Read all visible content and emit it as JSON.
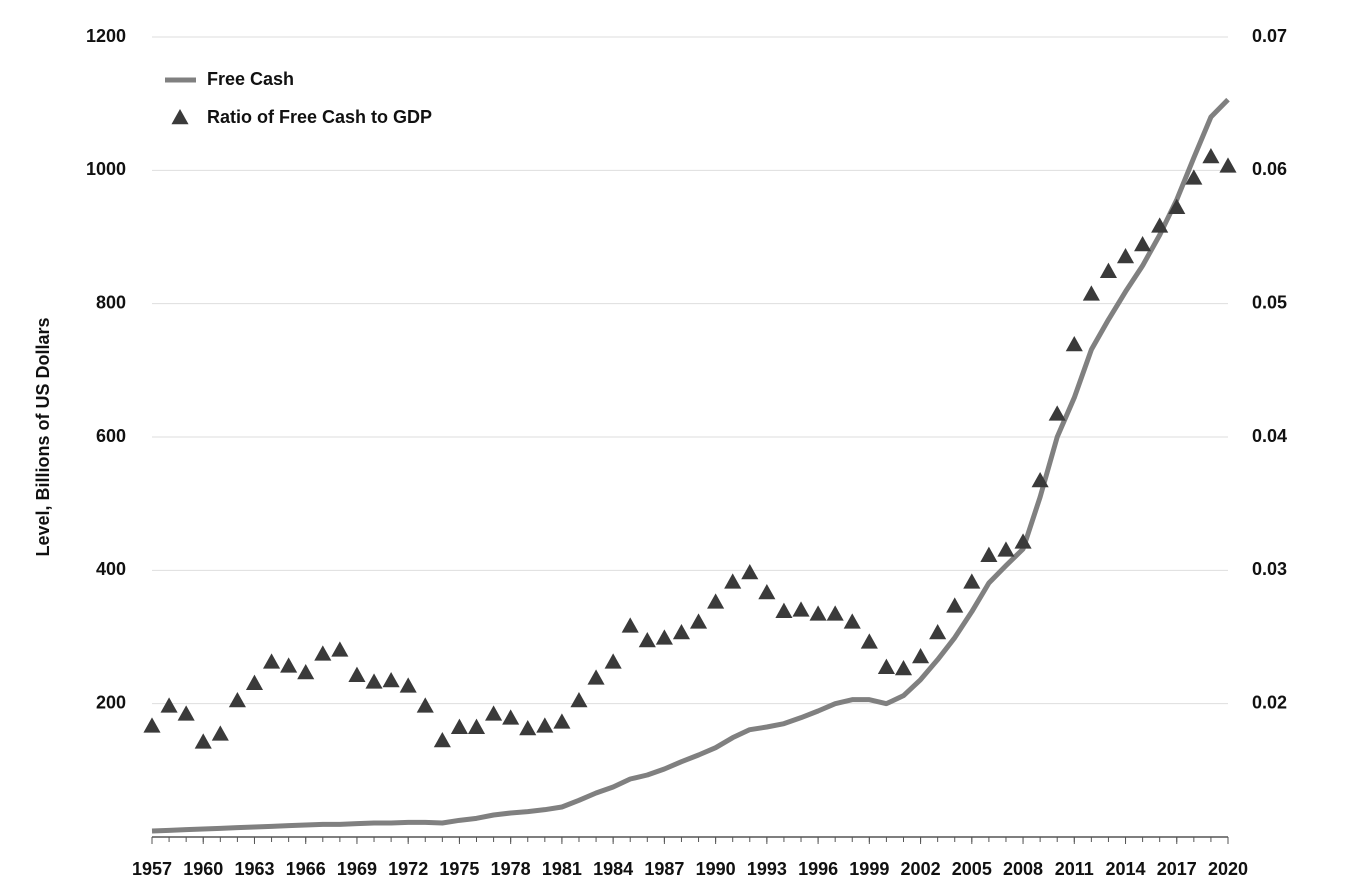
{
  "chart_data": {
    "type": "line",
    "y_label": "Level, Billions of US Dollars",
    "x": [
      1957,
      1958,
      1959,
      1960,
      1961,
      1962,
      1963,
      1964,
      1965,
      1966,
      1967,
      1968,
      1969,
      1970,
      1971,
      1972,
      1973,
      1974,
      1975,
      1976,
      1977,
      1978,
      1979,
      1980,
      1981,
      1982,
      1983,
      1984,
      1985,
      1986,
      1987,
      1988,
      1989,
      1990,
      1991,
      1992,
      1993,
      1994,
      1995,
      1996,
      1997,
      1998,
      1999,
      2000,
      2001,
      2002,
      2003,
      2004,
      2005,
      2006,
      2007,
      2008,
      2009,
      2010,
      2011,
      2012,
      2013,
      2014,
      2015,
      2016,
      2017,
      2018,
      2019,
      2020
    ],
    "series": [
      {
        "name": "Free Cash",
        "type": "line",
        "color": "#808080",
        "axis": "y",
        "values": [
          9,
          10,
          11,
          12,
          13,
          14,
          15,
          16,
          17,
          18,
          19,
          19,
          20,
          21,
          21,
          22,
          22,
          21,
          25,
          28,
          33,
          36,
          38,
          41,
          45,
          55,
          66,
          75,
          87,
          93,
          102,
          113,
          123,
          134,
          149,
          161,
          165,
          170,
          179,
          189,
          200,
          206,
          206,
          200,
          212,
          236,
          266,
          299,
          338,
          381,
          407,
          432,
          510,
          600,
          659,
          731,
          776,
          818,
          857,
          903,
          956,
          1019,
          1080,
          1106
        ]
      },
      {
        "name": "Ratio of Free Cash to GDP",
        "type": "scatter",
        "marker": "triangle",
        "color": "#3a3a3a",
        "axis": "y2",
        "values": [
          0.0183,
          0.0198,
          0.0192,
          0.0171,
          0.0177,
          0.0202,
          0.0215,
          0.0231,
          0.0228,
          0.0223,
          0.0237,
          0.024,
          0.0221,
          0.0216,
          0.0217,
          0.0213,
          0.0198,
          0.0172,
          0.0182,
          0.0182,
          0.0192,
          0.0189,
          0.0181,
          0.0183,
          0.0186,
          0.0202,
          0.0219,
          0.0231,
          0.0258,
          0.0247,
          0.0249,
          0.0253,
          0.0261,
          0.0276,
          0.0291,
          0.0298,
          0.0283,
          0.0269,
          0.027,
          0.0267,
          0.0267,
          0.0261,
          0.0246,
          0.0227,
          0.0226,
          0.0235,
          0.0253,
          0.0273,
          0.0291,
          0.0311,
          0.0315,
          0.0321,
          0.0367,
          0.0417,
          0.0469,
          0.0507,
          0.0524,
          0.0535,
          0.0544,
          0.0558,
          0.0572,
          0.0594,
          0.061,
          0.0603
        ]
      }
    ],
    "xlim": [
      1957,
      2020
    ],
    "xticks": [
      1957,
      1960,
      1963,
      1966,
      1969,
      1972,
      1975,
      1978,
      1981,
      1984,
      1987,
      1990,
      1993,
      1996,
      1999,
      2002,
      2005,
      2008,
      2011,
      2014,
      2017,
      2020
    ],
    "ylim": [
      0,
      1200
    ],
    "yticks": [
      200,
      400,
      600,
      800,
      1000,
      1200
    ],
    "y2lim": [
      0.01,
      0.07
    ],
    "y2ticks": [
      0.02,
      0.03,
      0.04,
      0.05,
      0.06,
      0.07
    ],
    "grid": true,
    "legend": "upper left"
  }
}
